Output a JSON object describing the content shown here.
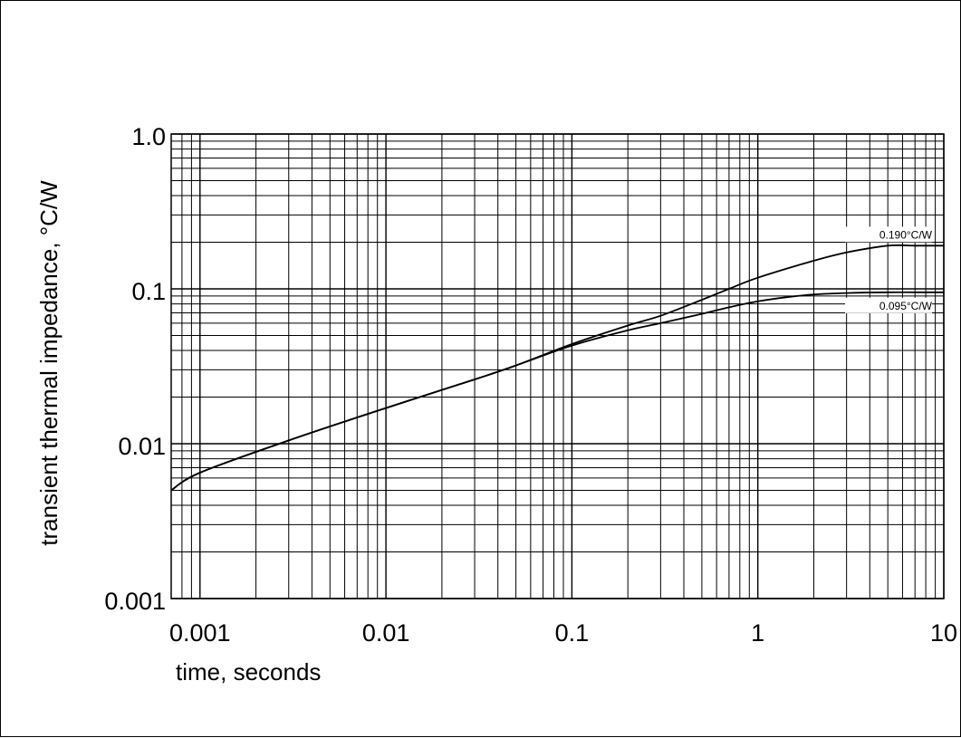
{
  "chart_data": {
    "type": "line",
    "xlabel": "time, seconds",
    "ylabel": "transient thermal impedance,  °C/W",
    "x_scale": "log",
    "y_scale": "log",
    "xlim": [
      0.0007,
      10
    ],
    "ylim": [
      0.001,
      1.0
    ],
    "grid": true,
    "x_ticks": [
      {
        "value": 0.001,
        "label": "0.001"
      },
      {
        "value": 0.01,
        "label": "0.01"
      },
      {
        "value": 0.1,
        "label": "0.1"
      },
      {
        "value": 1,
        "label": "1"
      },
      {
        "value": 10,
        "label": "10"
      }
    ],
    "y_ticks": [
      {
        "value": 0.001,
        "label": "0.001"
      },
      {
        "value": 0.01,
        "label": "0.01"
      },
      {
        "value": 0.1,
        "label": "0.1"
      },
      {
        "value": 1.0,
        "label": "1.0"
      }
    ],
    "series": [
      {
        "name": "0.190°C/W",
        "x": [
          0.0007,
          0.001,
          0.003,
          0.01,
          0.03,
          0.05,
          0.1,
          0.2,
          0.3,
          0.5,
          0.7,
          1,
          2,
          3,
          5,
          7,
          10
        ],
        "y": [
          0.005,
          0.0065,
          0.0105,
          0.017,
          0.026,
          0.032,
          0.044,
          0.058,
          0.067,
          0.085,
          0.1,
          0.118,
          0.152,
          0.172,
          0.19,
          0.19,
          0.19
        ]
      },
      {
        "name": "0.095°C/W",
        "x": [
          0.0007,
          0.001,
          0.003,
          0.01,
          0.03,
          0.05,
          0.1,
          0.2,
          0.3,
          0.5,
          0.7,
          1,
          1.5,
          2,
          3,
          5,
          7,
          10
        ],
        "y": [
          0.005,
          0.0065,
          0.0105,
          0.017,
          0.026,
          0.032,
          0.043,
          0.054,
          0.06,
          0.069,
          0.076,
          0.083,
          0.089,
          0.092,
          0.094,
          0.095,
          0.095,
          0.095
        ]
      }
    ]
  }
}
